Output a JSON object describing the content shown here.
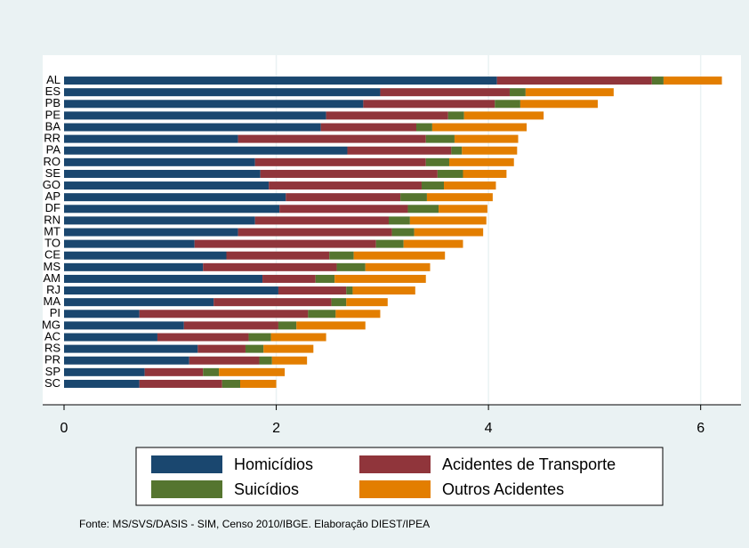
{
  "chart_data": {
    "type": "stacked-barh",
    "categories": [
      "AL",
      "ES",
      "PB",
      "PE",
      "BA",
      "RR",
      "PA",
      "RO",
      "SE",
      "GO",
      "AP",
      "DF",
      "RN",
      "MT",
      "TO",
      "CE",
      "MS",
      "AM",
      "RJ",
      "MA",
      "PI",
      "MG",
      "AC",
      "RS",
      "PR",
      "SP",
      "SC"
    ],
    "series": [
      {
        "name": "Homicídios",
        "color": "#1a476f",
        "values": [
          4.08,
          2.98,
          2.82,
          2.47,
          2.42,
          1.64,
          2.67,
          1.8,
          1.85,
          1.93,
          2.09,
          2.03,
          1.8,
          1.64,
          1.23,
          1.53,
          1.31,
          1.87,
          2.02,
          1.41,
          0.71,
          1.13,
          0.88,
          1.26,
          1.18,
          0.76,
          0.71
        ]
      },
      {
        "name": "Acidentes de Transporte",
        "color": "#90353b",
        "values": [
          1.46,
          1.22,
          1.24,
          1.15,
          0.9,
          1.77,
          0.98,
          1.61,
          1.67,
          1.44,
          1.08,
          1.21,
          1.26,
          1.45,
          1.71,
          0.97,
          1.26,
          0.5,
          0.64,
          1.11,
          1.59,
          0.89,
          0.86,
          0.45,
          0.66,
          0.55,
          0.78
        ]
      },
      {
        "name": "Suicídios",
        "color": "#55752f",
        "values": [
          0.11,
          0.15,
          0.24,
          0.15,
          0.15,
          0.27,
          0.1,
          0.22,
          0.24,
          0.21,
          0.25,
          0.29,
          0.2,
          0.21,
          0.26,
          0.23,
          0.27,
          0.18,
          0.06,
          0.14,
          0.26,
          0.17,
          0.21,
          0.17,
          0.12,
          0.15,
          0.17
        ]
      },
      {
        "name": "Outros Acidentes",
        "color": "#e37e00",
        "values": [
          0.55,
          0.83,
          0.73,
          0.75,
          0.89,
          0.6,
          0.52,
          0.61,
          0.41,
          0.49,
          0.62,
          0.46,
          0.72,
          0.65,
          0.56,
          0.86,
          0.61,
          0.86,
          0.59,
          0.39,
          0.42,
          0.65,
          0.52,
          0.47,
          0.33,
          0.62,
          0.34
        ]
      }
    ],
    "xlim": [
      0,
      6.38
    ],
    "xticks": [
      0,
      2,
      4,
      6
    ],
    "grid": true,
    "source": "Fonte: MS/SVS/DASIS - SIM, Censo 2010/IBGE. Elaboração DIEST/IPEA"
  }
}
